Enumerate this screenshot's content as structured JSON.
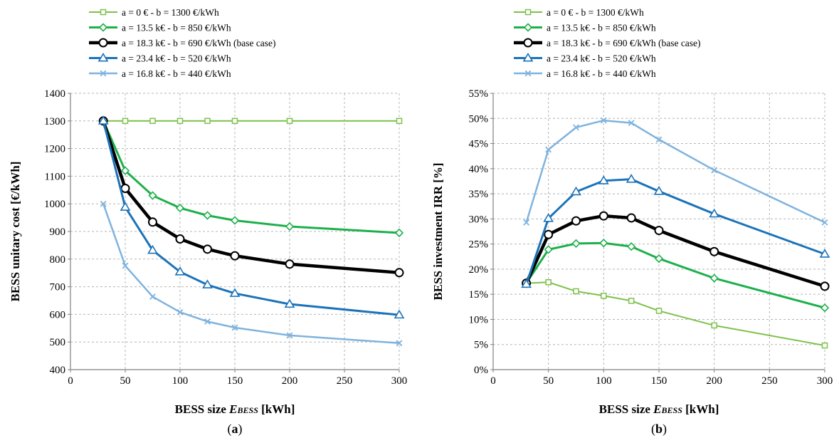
{
  "chart_data": [
    {
      "type": "line",
      "panel_label": "(a)",
      "panel_letter": "a",
      "xlabel": "BESS size E",
      "xlabel_sub": "BESS",
      "xlabel_unit": " [kWh]",
      "ylabel": "BESS unitary cost [€/kWh]",
      "xlim": [
        0,
        300
      ],
      "ylim": [
        400,
        1400
      ],
      "xticks": [
        0,
        50,
        100,
        150,
        200,
        250,
        300
      ],
      "yticks": [
        400,
        500,
        600,
        700,
        800,
        900,
        1000,
        1100,
        1200,
        1300,
        1400
      ],
      "ytick_suffix": "",
      "grid": true,
      "legend_position": "top",
      "series": [
        {
          "name": "a = 0 € - b = 1300 €/kWh",
          "color": "#7dc14a",
          "marker": "square",
          "width": 2,
          "x": [
            30,
            50,
            75,
            100,
            125,
            150,
            200,
            300
          ],
          "y": [
            1300,
            1300,
            1300,
            1300,
            1300,
            1300,
            1300,
            1300
          ]
        },
        {
          "name": "a = 13.5 k€ - b = 850 €/kWh",
          "color": "#1db04b",
          "marker": "diamond",
          "width": 3,
          "x": [
            30,
            50,
            75,
            100,
            125,
            150,
            200,
            300
          ],
          "y": [
            1300,
            1120,
            1030,
            985,
            958,
            940,
            918,
            895
          ]
        },
        {
          "name": "a = 18.3 k€ - b = 690 €/kWh (base case)",
          "color": "#000000",
          "marker": "circle",
          "width": 4.5,
          "x": [
            30,
            50,
            75,
            100,
            125,
            150,
            200,
            300
          ],
          "y": [
            1300,
            1056,
            934,
            873,
            836,
            812,
            782,
            751
          ]
        },
        {
          "name": "a = 23.4 k€ - b = 520 €/kWh",
          "color": "#1c73b9",
          "marker": "triangle",
          "width": 3,
          "x": [
            30,
            50,
            75,
            100,
            125,
            150,
            200,
            300
          ],
          "y": [
            1300,
            988,
            832,
            754,
            707,
            676,
            637,
            598
          ]
        },
        {
          "name": "a = 16.8 k€ - b = 440 €/kWh",
          "color": "#7fb3de",
          "marker": "x",
          "width": 2.5,
          "x": [
            30,
            50,
            75,
            100,
            125,
            150,
            200,
            300
          ],
          "y": [
            1000,
            776,
            664,
            608,
            574,
            552,
            524,
            496
          ]
        }
      ]
    },
    {
      "type": "line",
      "panel_label": "(b)",
      "panel_letter": "b",
      "xlabel": "BESS size E",
      "xlabel_sub": "BESS",
      "xlabel_unit": " [kWh]",
      "ylabel": "BESS investment IRR [%]",
      "xlim": [
        0,
        300
      ],
      "ylim": [
        0,
        55
      ],
      "xticks": [
        0,
        50,
        100,
        150,
        200,
        250,
        300
      ],
      "yticks": [
        0,
        5,
        10,
        15,
        20,
        25,
        30,
        35,
        40,
        45,
        50,
        55
      ],
      "ytick_suffix": "%",
      "grid": true,
      "legend_position": "top",
      "series": [
        {
          "name": "a = 0 € - b = 1300 €/kWh",
          "color": "#7dc14a",
          "marker": "square",
          "width": 2,
          "x": [
            30,
            50,
            75,
            100,
            125,
            150,
            200,
            300
          ],
          "y": [
            17.2,
            17.4,
            15.6,
            14.7,
            13.7,
            11.7,
            8.8,
            4.8
          ]
        },
        {
          "name": "a = 13.5 k€ - b = 850 €/kWh",
          "color": "#1db04b",
          "marker": "diamond",
          "width": 3,
          "x": [
            30,
            50,
            75,
            100,
            125,
            150,
            200,
            300
          ],
          "y": [
            17.2,
            23.9,
            25.1,
            25.2,
            24.5,
            22.1,
            18.2,
            12.3
          ]
        },
        {
          "name": "a = 18.3 k€ - b = 690 €/kWh (base case)",
          "color": "#000000",
          "marker": "circle",
          "width": 4.5,
          "x": [
            30,
            50,
            75,
            100,
            125,
            150,
            200,
            300
          ],
          "y": [
            17.2,
            26.9,
            29.6,
            30.6,
            30.2,
            27.7,
            23.5,
            16.6
          ]
        },
        {
          "name": "a = 23.4 k€ - b = 520 €/kWh",
          "color": "#1c73b9",
          "marker": "triangle",
          "width": 3,
          "x": [
            30,
            50,
            75,
            100,
            125,
            150,
            200,
            300
          ],
          "y": [
            17.0,
            30.1,
            35.4,
            37.6,
            37.9,
            35.5,
            31.0,
            23.0
          ]
        },
        {
          "name": "a = 16.8 k€ - b = 440 €/kWh",
          "color": "#7fb3de",
          "marker": "x",
          "width": 2.5,
          "x": [
            30,
            50,
            75,
            100,
            125,
            150,
            200,
            300
          ],
          "y": [
            29.3,
            43.8,
            48.2,
            49.6,
            49.1,
            45.8,
            39.7,
            29.3
          ]
        }
      ]
    }
  ]
}
